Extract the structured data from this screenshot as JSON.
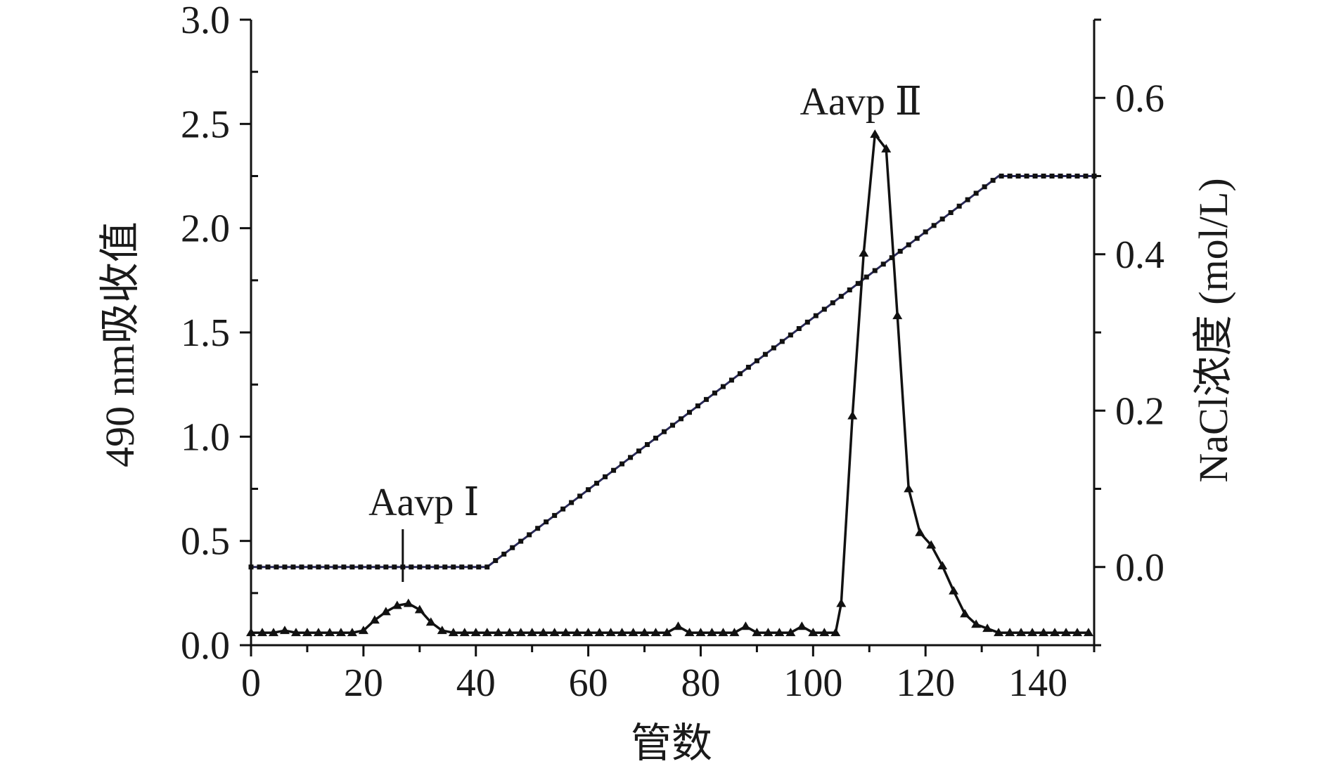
{
  "chart_data": {
    "type": "line",
    "title": "",
    "xlabel": "管数",
    "ylabel": "490 nm吸收值",
    "y2label": "NaCl浓度 (mol/L)",
    "xlim": [
      0,
      150
    ],
    "ylim": [
      0,
      3.0
    ],
    "y2lim": [
      -0.1,
      0.7
    ],
    "x_ticks": [
      "0",
      "20",
      "40",
      "60",
      "80",
      "100",
      "120",
      "140"
    ],
    "y_ticks": [
      "0.0",
      "0.5",
      "1.0",
      "1.5",
      "2.0",
      "2.5",
      "3.0"
    ],
    "y2_ticks": [
      "0.0",
      "0.2",
      "0.4",
      "0.6"
    ],
    "grid": false,
    "legend": "none",
    "colors": {
      "absorbance": "#111111",
      "gradient": "#2a2a5a"
    },
    "annotations": [
      {
        "label": "Aavp Ⅰ",
        "x": 27,
        "y": 0.2
      },
      {
        "label": "Aavp Ⅱ",
        "x": 111,
        "y": 2.45
      }
    ],
    "series": [
      {
        "axis": "left",
        "marker": "triangle",
        "x": [
          0,
          2,
          4,
          6,
          8,
          10,
          12,
          14,
          16,
          18,
          20,
          22,
          24,
          26,
          28,
          30,
          32,
          34,
          36,
          38,
          40,
          42,
          44,
          46,
          48,
          50,
          52,
          54,
          56,
          58,
          60,
          62,
          64,
          66,
          68,
          70,
          72,
          74,
          76,
          78,
          80,
          82,
          84,
          86,
          88,
          90,
          92,
          94,
          96,
          98,
          100,
          102,
          104,
          105,
          107,
          109,
          111,
          113,
          115,
          117,
          119,
          121,
          123,
          125,
          127,
          129,
          131,
          133,
          135,
          137,
          139,
          141,
          143,
          145,
          147,
          149
        ],
        "values": [
          0.06,
          0.06,
          0.06,
          0.07,
          0.06,
          0.06,
          0.06,
          0.06,
          0.06,
          0.06,
          0.07,
          0.12,
          0.16,
          0.19,
          0.2,
          0.17,
          0.11,
          0.07,
          0.06,
          0.06,
          0.06,
          0.06,
          0.06,
          0.06,
          0.06,
          0.06,
          0.06,
          0.06,
          0.06,
          0.06,
          0.06,
          0.06,
          0.06,
          0.06,
          0.06,
          0.06,
          0.06,
          0.06,
          0.09,
          0.06,
          0.06,
          0.06,
          0.06,
          0.06,
          0.09,
          0.06,
          0.06,
          0.06,
          0.06,
          0.09,
          0.06,
          0.06,
          0.06,
          0.2,
          1.1,
          1.88,
          2.45,
          2.38,
          1.58,
          0.75,
          0.54,
          0.48,
          0.38,
          0.26,
          0.15,
          0.1,
          0.08,
          0.06,
          0.06,
          0.06,
          0.06,
          0.06,
          0.06,
          0.06,
          0.06,
          0.06
        ]
      },
      {
        "axis": "right",
        "marker": "square",
        "x": [
          0,
          42,
          133,
          150
        ],
        "values": [
          0.0,
          0.0,
          0.5,
          0.5
        ]
      }
    ]
  }
}
